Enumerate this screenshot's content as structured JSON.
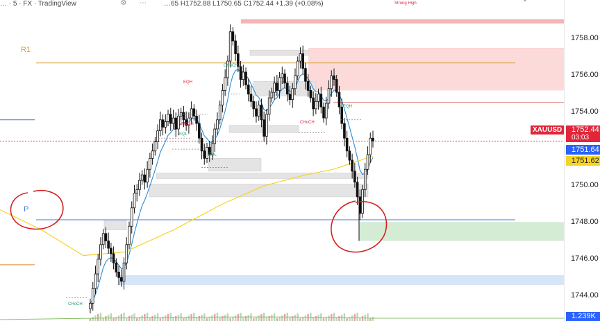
{
  "toolbar": {
    "left_text": "… · 5 · FX · TradingView",
    "ohlc_text": "…65 H1752.88 L1750.65 C1752.44 +1.39 (+0.08%)",
    "icons": [
      "settings-icon",
      "more-icon",
      "collapse-icon"
    ]
  },
  "chart_data": {
    "type": "candlestick",
    "symbol": "XAUUSD",
    "y_axis": {
      "ylim": [
        1743.2,
        1759.6
      ],
      "ticks": [
        1744.0,
        1746.0,
        1748.0,
        1750.0,
        1752.0,
        1754.0,
        1756.0,
        1758.0
      ],
      "tick_labels": [
        "1744.00",
        "1746.00",
        "1748.00",
        "1750.00",
        "1752.00",
        "1754.00",
        "1756.00",
        "1758.00"
      ]
    },
    "price_tags": [
      {
        "label": "XAUUSD",
        "value": "1752.44",
        "sub": "03:03",
        "color": "#e2263a"
      },
      {
        "label": "",
        "value": "1751.64",
        "sub": "",
        "color": "#2962ff"
      },
      {
        "label": "",
        "value": "1751.62",
        "sub": "",
        "color": "#f5d327"
      }
    ],
    "volume_label": "1.239K",
    "current_price": 1752.44,
    "pivot_levels": [
      {
        "label": "R1",
        "value": 1756.7,
        "color": "#d9a23b"
      },
      {
        "label": "P",
        "value": 1748.15,
        "color": "#4a76d9"
      }
    ],
    "candles_close": [
      1743.6,
      1744.4,
      1745.2,
      1746.0,
      1746.8,
      1747.4,
      1747.0,
      1746.6,
      1746.3,
      1745.8,
      1745.3,
      1745.0,
      1744.8,
      1745.8,
      1746.8,
      1747.8,
      1748.8,
      1749.6,
      1749.8,
      1750.3,
      1750.6,
      1750.2,
      1750.9,
      1751.5,
      1751.9,
      1752.4,
      1753.0,
      1753.6,
      1753.2,
      1753.5,
      1753.9,
      1753.4,
      1753.7,
      1753.1,
      1753.8,
      1754.0,
      1753.6,
      1753.3,
      1753.7,
      1754.2,
      1753.8,
      1753.4,
      1752.6,
      1751.9,
      1751.5,
      1752.1,
      1751.7,
      1752.3,
      1753.1,
      1753.6,
      1754.4,
      1755.2,
      1755.9,
      1756.8,
      1758.4,
      1757.9,
      1757.2,
      1756.5,
      1755.8,
      1756.2,
      1755.5,
      1755.0,
      1754.6,
      1754.2,
      1753.8,
      1754.4,
      1753.6,
      1752.7,
      1753.9,
      1754.8,
      1755.1,
      1755.6,
      1755.2,
      1755.9,
      1756.1,
      1755.6,
      1755.0,
      1754.7,
      1755.3,
      1756.0,
      1756.8,
      1757.2,
      1756.4,
      1755.7,
      1755.2,
      1754.8,
      1754.2,
      1754.6,
      1755.0,
      1754.3,
      1753.7,
      1754.5,
      1755.3,
      1756.0,
      1755.8,
      1755.1,
      1754.3,
      1753.4,
      1752.6,
      1751.9,
      1751.4,
      1750.8,
      1750.2,
      1749.4,
      1748.5,
      1749.8,
      1750.9,
      1751.7,
      1752.6,
      1752.44
    ]
  },
  "zones": [
    {
      "name": "supply-zone-top",
      "y1": 1758.85,
      "y2": 1759.05,
      "color": "#f4a7a7",
      "label": "Strong High"
    },
    {
      "name": "supply-zone-main",
      "y1": 1755.2,
      "y2": 1757.5,
      "color": "#fbd3d3",
      "label": ""
    },
    {
      "name": "demand-zone-green",
      "y1": 1747.0,
      "y2": 1748.0,
      "color": "#cde9cc",
      "label": ""
    },
    {
      "name": "demand-zone-blue",
      "y1": 1744.6,
      "y2": 1745.1,
      "color": "#cfe0f7",
      "label": ""
    }
  ],
  "annotations": [
    {
      "text": "CHoCH",
      "color": "#2aa079"
    },
    {
      "text": "CHoCH",
      "color": "#e2263a"
    },
    {
      "text": "CHoCH",
      "color": "#e2263a"
    },
    {
      "text": "CHoCH",
      "color": "#2aa079"
    },
    {
      "text": "EQH",
      "color": "#e2263a"
    },
    {
      "text": "EQH",
      "color": "#2aa079"
    },
    {
      "text": "EQL",
      "color": "#2aa079"
    },
    {
      "text": "EQL",
      "color": "#2aa079"
    }
  ]
}
